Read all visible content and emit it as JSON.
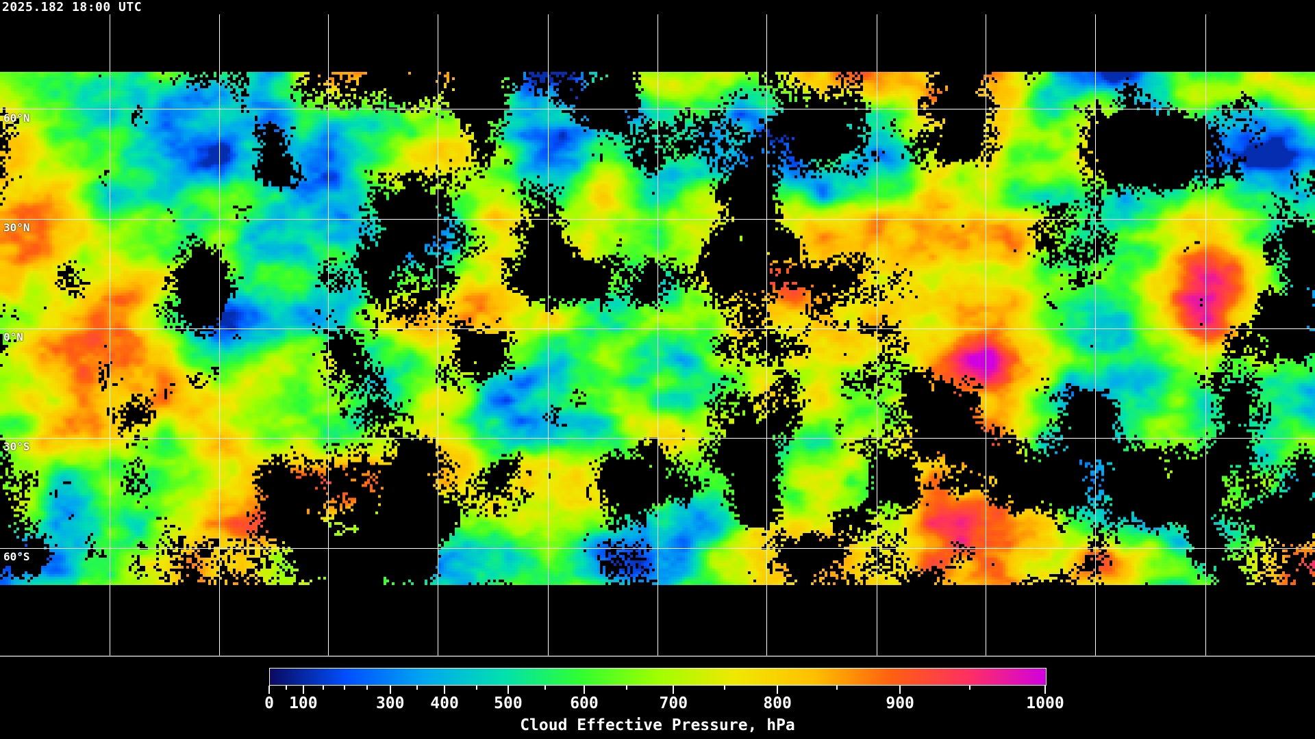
{
  "timestamp": "2025.182 18:00 UTC",
  "latitude_labels": [
    "60°N",
    "30°N",
    "0°N",
    "30°S",
    "60°S"
  ],
  "colorbar": {
    "title": "Cloud Effective Pressure, hPa",
    "range": [
      0,
      1000
    ],
    "tick_labels": [
      "0",
      "100",
      "300",
      "400",
      "500",
      "600",
      "700",
      "800",
      "900",
      "1000"
    ],
    "minor_ticks": [
      50,
      150,
      200,
      250,
      350,
      450,
      550,
      650,
      750,
      850,
      950
    ],
    "colors": [
      "#0a0a60",
      "#0050ff",
      "#00a8f0",
      "#00e0b0",
      "#30ff30",
      "#a0ff00",
      "#f0e800",
      "#ffc000",
      "#ff6010",
      "#ff3060",
      "#d000e0"
    ]
  },
  "no_data_color": "#000000",
  "grid_color": "#ffffff",
  "coastline_color": "#ffffff"
}
